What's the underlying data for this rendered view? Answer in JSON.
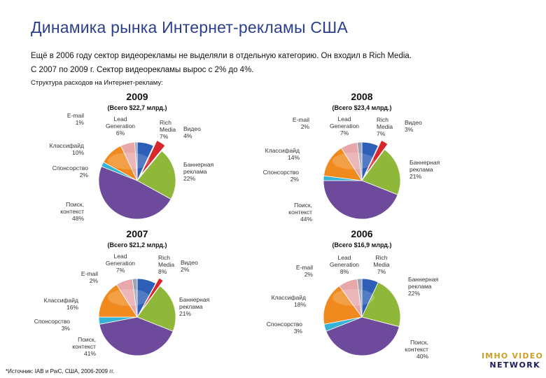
{
  "title": "Динамика рынка Интернет-рекламы США",
  "intro": {
    "line1": "Ещё в 2006 году сектор видеорекламы не выделяли в отдельную категорию. Он входил в Rich Media.",
    "line2": "С 2007 по 2009 г. Сектор видеорекламы вырос с 2% до 4%."
  },
  "subtitle": "Структура расходов на Интернет-рекламу:",
  "footnote": "*Источник: IAB и PwC, США, 2006-2009 гг.",
  "logo": {
    "line1": "IMHO VIDEO",
    "line2": "NETWORK"
  },
  "colors": {
    "title": "#2a3f8f",
    "rich_media": "#2e5fb8",
    "video": "#d8262c",
    "banner": "#8fb83a",
    "search": "#6e4a9c",
    "sponsorship": "#35b2d6",
    "classifieds": "#f08a1e",
    "lead_generation": "#e8a8aa",
    "email": "#9aa4b4"
  },
  "chart_data": [
    {
      "type": "pie",
      "year": "2009",
      "title": "(Всего $22,7 млрд.)",
      "slices": [
        {
          "key": "rich_media",
          "label": "Rich Media",
          "value": 7,
          "display": "7%"
        },
        {
          "key": "video",
          "label": "Видео",
          "value": 4,
          "display": "4%",
          "exploded": true
        },
        {
          "key": "banner",
          "label": "Баннерная реклама",
          "value": 22,
          "display": "22%"
        },
        {
          "key": "search",
          "label": "Поиск, контекст",
          "value": 48,
          "display": "48%"
        },
        {
          "key": "sponsorship",
          "label": "Спонсорство",
          "value": 2,
          "display": "2%"
        },
        {
          "key": "classifieds",
          "label": "Классифайд",
          "value": 10,
          "display": "10%"
        },
        {
          "key": "lead_generation",
          "label": "Lead Generation",
          "value": 6,
          "display": "6%"
        },
        {
          "key": "email",
          "label": "E-mail",
          "value": 1,
          "display": "1%"
        }
      ]
    },
    {
      "type": "pie",
      "year": "2008",
      "title": "(Всего $23,4 млрд.)",
      "slices": [
        {
          "key": "rich_media",
          "label": "Rich Media",
          "value": 7,
          "display": "7%"
        },
        {
          "key": "video",
          "label": "Видео",
          "value": 3,
          "display": "3%",
          "exploded": true
        },
        {
          "key": "banner",
          "label": "Баннерная реклама",
          "value": 21,
          "display": "21%"
        },
        {
          "key": "search",
          "label": "Поиск, контекст",
          "value": 44,
          "display": "44%"
        },
        {
          "key": "sponsorship",
          "label": "Спонсорство",
          "value": 2,
          "display": "2%"
        },
        {
          "key": "classifieds",
          "label": "Классифайд",
          "value": 14,
          "display": "14%"
        },
        {
          "key": "lead_generation",
          "label": "Lead Generation",
          "value": 7,
          "display": "7%"
        },
        {
          "key": "email",
          "label": "E-mail",
          "value": 2,
          "display": "2%"
        }
      ]
    },
    {
      "type": "pie",
      "year": "2007",
      "title": "(Всего $21,2 млрд.)",
      "slices": [
        {
          "key": "rich_media",
          "label": "Rich Media",
          "value": 8,
          "display": "8%"
        },
        {
          "key": "video",
          "label": "Видео",
          "value": 2,
          "display": "2%",
          "exploded": true
        },
        {
          "key": "banner",
          "label": "Баннерная реклама",
          "value": 21,
          "display": "21%"
        },
        {
          "key": "search",
          "label": "Поиск, контекст",
          "value": 41,
          "display": "41%"
        },
        {
          "key": "sponsorship",
          "label": "Спонсорство",
          "value": 3,
          "display": "3%"
        },
        {
          "key": "classifieds",
          "label": "Классифайд",
          "value": 16,
          "display": "16%"
        },
        {
          "key": "lead_generation",
          "label": "Lead Generation",
          "value": 7,
          "display": "7%"
        },
        {
          "key": "email",
          "label": "E-mail",
          "value": 2,
          "display": "2%"
        }
      ]
    },
    {
      "type": "pie",
      "year": "2006",
      "title": "(Всего $16,9 млрд.)",
      "slices": [
        {
          "key": "rich_media",
          "label": "Rich Media",
          "value": 7,
          "display": "7%"
        },
        {
          "key": "banner",
          "label": "Баннерная реклама",
          "value": 22,
          "display": "22%"
        },
        {
          "key": "search",
          "label": "Поиск, контекст",
          "value": 40,
          "display": "40%"
        },
        {
          "key": "sponsorship",
          "label": "Спонсорство",
          "value": 3,
          "display": "3%"
        },
        {
          "key": "classifieds",
          "label": "Классифайд",
          "value": 18,
          "display": "18%"
        },
        {
          "key": "lead_generation",
          "label": "Lead Generation",
          "value": 8,
          "display": "8%"
        },
        {
          "key": "email",
          "label": "E-mail",
          "value": 2,
          "display": "2%"
        }
      ]
    }
  ]
}
